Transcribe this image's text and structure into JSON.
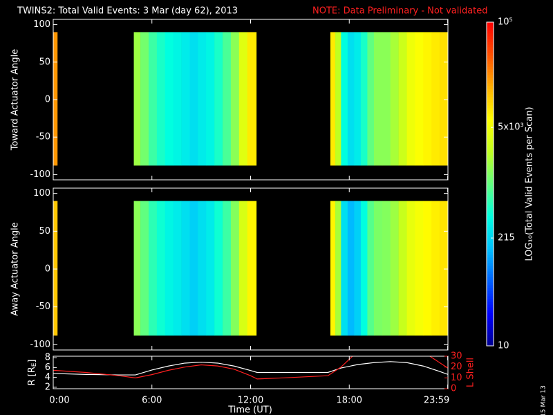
{
  "chart_data": {
    "type": "spectrogram",
    "title": "TWINS2: Total Valid Events:  3 Mar (day  62), 2013",
    "note": "NOTE: Data Preliminary - Not validated",
    "note_color": "#ff2020",
    "xlabel": "Time (UT)",
    "xlim": [
      0,
      24
    ],
    "xticks": [
      {
        "value": 0,
        "label": "0:00"
      },
      {
        "value": 6,
        "label": "6:00"
      },
      {
        "value": 12,
        "label": "12:00"
      },
      {
        "value": 18,
        "label": "18:00"
      },
      {
        "value": 23.983,
        "label": "23:59"
      }
    ],
    "colorbar": {
      "label": "LOG₁₀(Total Valid Events per Scan)",
      "log": true,
      "clim": [
        10,
        100000
      ],
      "ticks": [
        10,
        215,
        {
          "value": 5000,
          "label": "5x10³"
        },
        {
          "value": 100000,
          "label": "10⁵"
        }
      ],
      "colormap": [
        "#000090",
        "#0000ff",
        "#0060ff",
        "#00c0ff",
        "#00ffe0",
        "#60ff80",
        "#c0ff20",
        "#ffff00",
        "#ffb000",
        "#ff5000",
        "#ff0000"
      ]
    },
    "panels": [
      {
        "ylabel": "Toward Actuator Angle",
        "ylim": [
          -107,
          107
        ],
        "yticks": [
          -100,
          -50,
          0,
          50,
          100
        ],
        "yrange": [
          -88,
          90
        ],
        "blocks": [
          {
            "edges": [
              0,
              0.25
            ],
            "values": [
              20000
            ]
          },
          {
            "edges": [
              4.9,
              5.3,
              5.8,
              6.3,
              6.8,
              7.3,
              7.8,
              8.3,
              8.8,
              9.3,
              9.8,
              10.3,
              10.8,
              11.3,
              11.8,
              12.35
            ],
            "values": [
              1800,
              1200,
              700,
              500,
              400,
              350,
              300,
              250,
              300,
              350,
              500,
              800,
              1500,
              4000,
              8000
            ]
          },
          {
            "edges": [
              16.85,
              17.15,
              17.5,
              17.9,
              18.3,
              18.7,
              19.1,
              19.5,
              20.0,
              20.5,
              21.0,
              21.5,
              22.0,
              22.5,
              23.0,
              23.5,
              24.0
            ],
            "values": [
              8000,
              2500,
              400,
              250,
              300,
              500,
              1000,
              1500,
              1500,
              2000,
              3000,
              5000,
              6000,
              7000,
              8000,
              9000
            ]
          }
        ]
      },
      {
        "ylabel": "Away Actuator Angle",
        "ylim": [
          -107,
          107
        ],
        "yticks": [
          -100,
          -50,
          0,
          50,
          100
        ],
        "yrange": [
          -88,
          90
        ],
        "blocks": [
          {
            "edges": [
              0,
              0.25
            ],
            "values": [
              12000
            ]
          },
          {
            "edges": [
              4.9,
              5.3,
              5.8,
              6.3,
              6.8,
              7.3,
              7.8,
              8.3,
              8.8,
              9.3,
              9.8,
              10.3,
              10.8,
              11.3,
              11.8,
              12.35
            ],
            "values": [
              1500,
              1000,
              600,
              450,
              350,
              300,
              250,
              200,
              250,
              300,
              450,
              700,
              1400,
              3500,
              7000
            ]
          },
          {
            "edges": [
              16.85,
              17.15,
              17.5,
              17.9,
              18.3,
              18.7,
              19.1,
              19.5,
              20.0,
              20.5,
              21.0,
              21.5,
              22.0,
              22.5,
              23.0,
              23.5,
              24.0
            ],
            "values": [
              7000,
              2000,
              250,
              150,
              200,
              400,
              900,
              1300,
              1400,
              1800,
              2800,
              4500,
              5500,
              6500,
              7500,
              8500
            ]
          }
        ]
      }
    ],
    "orbit": {
      "ylabel": [
        "R [R",
        "E",
        "]"
      ],
      "ylim": [
        1.7,
        8.3
      ],
      "yticks": [
        2,
        4,
        6,
        8
      ],
      "y2label": "L Shell",
      "y2lim": [
        0,
        30
      ],
      "y2ticks": [
        0,
        10,
        20,
        30
      ],
      "series": [
        {
          "name": "R",
          "color": "#ffffff",
          "x": [
            0,
            2,
            4,
            5,
            6,
            7,
            8,
            9,
            10,
            11,
            12,
            12.4,
            14,
            16.7,
            17.5,
            18.5,
            19.5,
            20.5,
            21.5,
            22.5,
            23.5,
            24
          ],
          "values": [
            4.8,
            4.6,
            4.5,
            4.5,
            5.5,
            6.3,
            6.9,
            7.1,
            6.9,
            6.3,
            5.4,
            5.0,
            5.0,
            5.0,
            5.9,
            6.6,
            7.0,
            7.2,
            7.0,
            6.3,
            5.2,
            4.6
          ]
        },
        {
          "name": "L Shell",
          "color": "#ff2020",
          "axis": "y2",
          "x": [
            0,
            2,
            4,
            5,
            6,
            7,
            8,
            9,
            10,
            11,
            12,
            12.4,
            14,
            16.7,
            17.5,
            18.2,
            18.4,
            20,
            22.8,
            24
          ],
          "values": [
            17,
            15,
            12,
            10,
            13,
            17,
            20,
            22,
            21,
            18,
            12,
            9,
            10,
            12,
            20,
            30,
            33,
            null,
            31,
            19
          ]
        }
      ]
    },
    "stamp": "15 Mar 13"
  }
}
